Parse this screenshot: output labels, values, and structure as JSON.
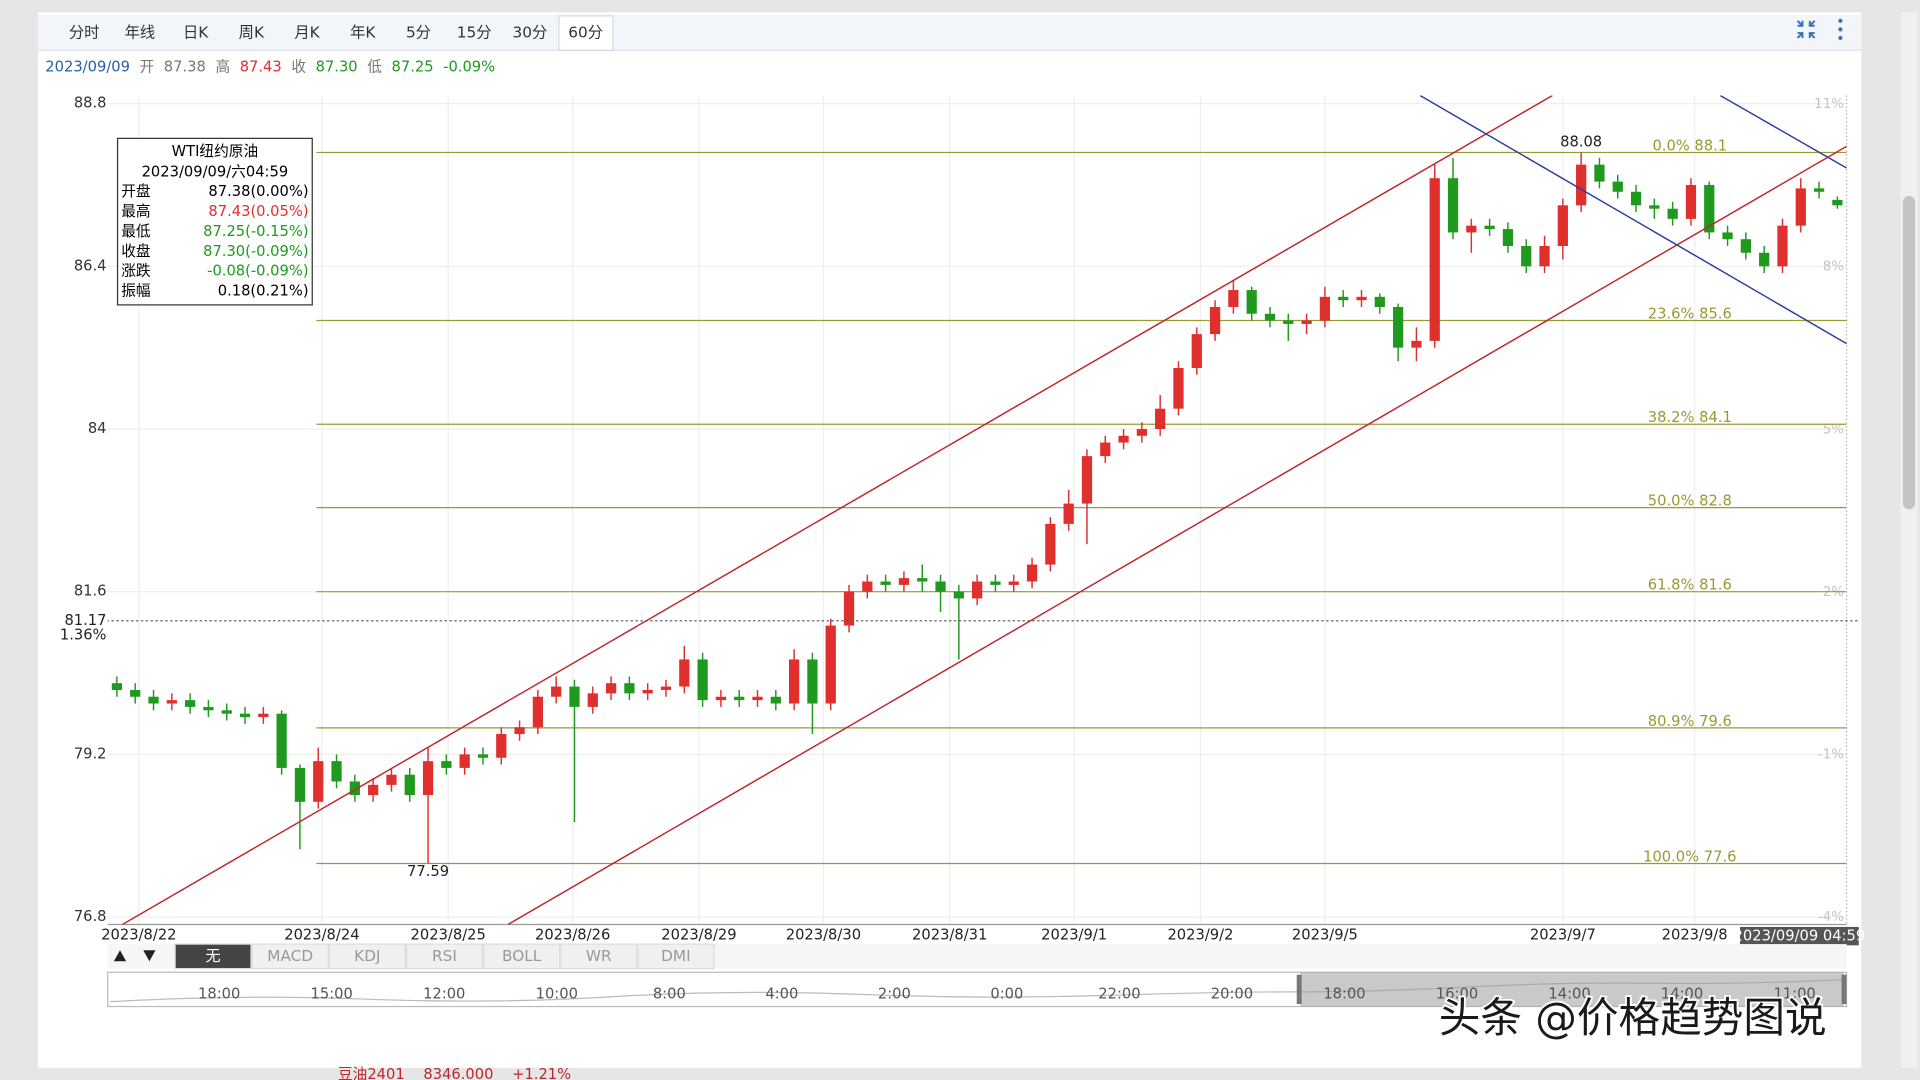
{
  "tabs": [
    "分时",
    "年线",
    "日K",
    "周K",
    "月K",
    "年K",
    "5分",
    "15分",
    "30分",
    "60分"
  ],
  "active_tab": 9,
  "info_bar": {
    "date": "2023/09/09",
    "open_label": "开",
    "open": "87.38",
    "high_label": "高",
    "high": "87.43",
    "close_label": "收",
    "close": "87.30",
    "low_label": "低",
    "low": "87.25",
    "change": "-0.09%"
  },
  "tooltip": {
    "title": "WTI纽约原油",
    "time": "2023/09/09/六04:59",
    "rows": [
      {
        "name": "开盘",
        "value": "87.38(0.00%)",
        "color": "#000000"
      },
      {
        "name": "最高",
        "value": "87.43(0.05%)",
        "color": "#e0302e"
      },
      {
        "name": "最低",
        "value": "87.25(-0.15%)",
        "color": "#1f9a1f"
      },
      {
        "name": "收盘",
        "value": "87.30(-0.09%)",
        "color": "#1f9a1f"
      },
      {
        "name": "涨跌",
        "value": "-0.08(-0.09%)",
        "color": "#1f9a1f"
      },
      {
        "name": "振幅",
        "value": "0.18(0.21%)",
        "color": "#000000"
      }
    ]
  },
  "chart_data": {
    "type": "candlestick",
    "open": [
      80.25,
      80.15,
      80.05,
      79.95,
      80.0,
      79.9,
      79.85,
      79.8,
      79.75,
      79.8,
      79.0,
      78.5,
      79.1,
      78.8,
      78.6,
      78.75,
      78.9,
      78.6,
      79.1,
      79.0,
      79.2,
      79.15,
      79.5,
      79.6,
      80.05,
      80.2,
      79.9,
      80.1,
      80.25,
      80.1,
      80.15,
      80.2,
      80.6,
      80.0,
      80.05,
      80.0,
      80.05,
      79.95,
      80.6,
      79.95,
      81.1,
      81.6,
      81.75,
      81.7,
      81.8,
      81.75,
      81.6,
      81.5,
      81.75,
      81.7,
      81.75,
      82.0,
      82.6,
      82.9,
      83.6,
      83.8,
      83.9,
      84.0,
      84.3,
      84.9,
      85.4,
      85.8,
      86.05,
      85.7,
      85.6,
      85.55,
      85.6,
      85.95,
      85.9,
      85.95,
      85.8,
      85.2,
      85.3,
      87.7,
      86.9,
      87.0,
      86.95,
      86.7,
      86.4,
      86.7,
      87.3,
      87.9,
      87.65,
      87.5,
      87.3,
      87.25,
      87.1,
      87.6,
      86.9,
      86.8,
      86.6,
      86.4,
      87.0,
      87.55,
      87.38
    ],
    "high": [
      80.35,
      80.25,
      80.15,
      80.1,
      80.1,
      80.0,
      79.95,
      79.9,
      79.9,
      79.85,
      79.05,
      79.3,
      79.2,
      78.9,
      78.85,
      79.0,
      79.0,
      79.3,
      79.2,
      79.3,
      79.3,
      79.6,
      79.7,
      80.15,
      80.35,
      80.3,
      80.2,
      80.35,
      80.35,
      80.25,
      80.3,
      80.8,
      80.7,
      80.15,
      80.15,
      80.15,
      80.15,
      80.75,
      80.7,
      81.2,
      81.7,
      81.85,
      81.85,
      81.9,
      82.0,
      81.85,
      81.7,
      81.85,
      81.85,
      81.85,
      82.1,
      82.7,
      83.1,
      83.7,
      83.9,
      84.0,
      84.1,
      84.5,
      85.0,
      85.5,
      85.9,
      86.2,
      86.1,
      85.8,
      85.7,
      85.7,
      86.1,
      86.05,
      86.05,
      86.0,
      85.85,
      85.5,
      87.9,
      88.0,
      87.1,
      87.1,
      87.05,
      86.8,
      86.85,
      87.4,
      88.08,
      88.0,
      87.75,
      87.6,
      87.4,
      87.35,
      87.7,
      87.65,
      87.0,
      86.9,
      86.7,
      87.1,
      87.7,
      87.65,
      87.43
    ],
    "low": [
      80.05,
      79.95,
      79.85,
      79.85,
      79.8,
      79.75,
      79.7,
      79.65,
      79.65,
      78.9,
      77.8,
      78.4,
      78.7,
      78.5,
      78.5,
      78.65,
      78.5,
      77.59,
      78.9,
      78.9,
      79.05,
      79.05,
      79.4,
      79.5,
      79.95,
      78.2,
      79.8,
      80.0,
      80.0,
      80.0,
      80.05,
      80.1,
      79.9,
      79.9,
      79.9,
      79.9,
      79.85,
      79.85,
      79.5,
      79.85,
      81.0,
      81.5,
      81.6,
      81.6,
      81.6,
      81.3,
      80.6,
      81.4,
      81.6,
      81.6,
      81.65,
      81.9,
      82.5,
      82.3,
      83.5,
      83.7,
      83.8,
      83.9,
      84.2,
      84.8,
      85.3,
      85.7,
      85.6,
      85.5,
      85.3,
      85.4,
      85.5,
      85.8,
      85.8,
      85.7,
      85.0,
      85.0,
      85.2,
      86.8,
      86.6,
      86.85,
      86.6,
      86.3,
      86.3,
      86.5,
      87.2,
      87.55,
      87.4,
      87.2,
      87.1,
      87.0,
      87.0,
      86.8,
      86.7,
      86.5,
      86.3,
      86.3,
      86.9,
      87.4,
      87.25
    ],
    "close": [
      80.15,
      80.05,
      79.95,
      80.0,
      79.9,
      79.85,
      79.8,
      79.75,
      79.8,
      79.0,
      78.5,
      79.1,
      78.8,
      78.6,
      78.75,
      78.9,
      78.6,
      79.1,
      79.0,
      79.2,
      79.15,
      79.5,
      79.6,
      80.05,
      80.2,
      79.9,
      80.1,
      80.25,
      80.1,
      80.15,
      80.2,
      80.6,
      80.0,
      80.05,
      80.0,
      80.05,
      79.95,
      80.6,
      79.95,
      81.1,
      81.6,
      81.75,
      81.7,
      81.8,
      81.75,
      81.6,
      81.5,
      81.75,
      81.7,
      81.75,
      82.0,
      82.6,
      82.9,
      83.6,
      83.8,
      83.9,
      84.0,
      84.3,
      84.9,
      85.4,
      85.8,
      86.05,
      85.7,
      85.6,
      85.55,
      85.6,
      85.95,
      85.9,
      85.95,
      85.8,
      85.2,
      85.3,
      87.7,
      86.9,
      87.0,
      86.95,
      86.7,
      86.4,
      86.7,
      87.3,
      87.9,
      87.65,
      87.5,
      87.3,
      87.25,
      87.1,
      87.6,
      86.9,
      86.8,
      86.6,
      86.4,
      87.0,
      87.55,
      87.5,
      87.3
    ],
    "up_color": "#e0302e",
    "down_color": "#1f9a1f",
    "ylim": [
      76.69,
      88.92
    ],
    "yticks": [
      88.8,
      86.4,
      84,
      81.6,
      79.2,
      76.8
    ],
    "y2lim": [
      -4.14,
      11.16
    ],
    "y2ticks": [
      {
        "value": 11,
        "label": "11%"
      },
      {
        "value": 8,
        "label": "8%"
      },
      {
        "value": 5,
        "label": "5%"
      },
      {
        "value": 2,
        "label": "2%"
      },
      {
        "value": -1,
        "label": "-1%"
      },
      {
        "value": -4,
        "label": "-4%"
      }
    ],
    "xlim": [
      0,
      95
    ],
    "xticks": [
      {
        "value": 1.7,
        "label": "2023/8/22"
      },
      {
        "value": 11.7,
        "label": "2023/8/24"
      },
      {
        "value": 18.6,
        "label": "2023/8/25"
      },
      {
        "value": 25.4,
        "label": "2023/8/26"
      },
      {
        "value": 32.3,
        "label": "2023/8/29"
      },
      {
        "value": 39.1,
        "label": "2023/8/30"
      },
      {
        "value": 46.0,
        "label": "2023/8/31"
      },
      {
        "value": 52.8,
        "label": "2023/9/1"
      },
      {
        "value": 59.7,
        "label": "2023/9/2"
      },
      {
        "value": 66.5,
        "label": "2023/9/5"
      },
      {
        "value": 79.5,
        "label": "2023/9/7"
      },
      {
        "value": 86.7,
        "label": "2023/9/8"
      }
    ],
    "grid": true,
    "cursor_label": "2023/09/09 04:59",
    "price_line": {
      "value": 81.17,
      "pct": {
        "value": 1.36,
        "label": "1.36%"
      }
    },
    "fibonacci": {
      "from_x": 11.4,
      "color": "#9a9a32",
      "levels": [
        {
          "value": 88.08,
          "label": "0.0% 88.1"
        },
        {
          "value": 85.6,
          "label": "23.6% 85.6"
        },
        {
          "value": 84.07,
          "label": "38.2% 84.1"
        },
        {
          "value": 82.84,
          "label": "50.0% 82.8"
        },
        {
          "value": 81.6,
          "label": "61.8% 81.6"
        },
        {
          "value": 79.59,
          "label": "80.9% 79.6"
        },
        {
          "value": 77.59,
          "label": "100.0% 77.6"
        }
      ]
    },
    "trendlines": [
      {
        "color": "#c0272d",
        "x": [
          0.8,
          78.93
        ],
        "y": [
          76.69,
          88.92
        ]
      },
      {
        "color": "#c0272d",
        "x": [
          21.87,
          95
        ],
        "y": [
          76.69,
          88.17
        ]
      },
      {
        "color": "#2c3e9e",
        "x": [
          71.7,
          95
        ],
        "y": [
          88.92,
          85.26
        ]
      },
      {
        "color": "#2c3e9e",
        "x": [
          88.1,
          95
        ],
        "y": [
          88.92,
          87.85
        ]
      }
    ],
    "annotations": [
      {
        "label": "88.08",
        "x": 80,
        "y": 88.08,
        "position": "above"
      },
      {
        "label": "77.59",
        "x": 17,
        "y": 77.59,
        "position": "below"
      }
    ]
  },
  "indicator_tabs": [
    "无",
    "MACD",
    "KDJ",
    "RSI",
    "BOLL",
    "WR",
    "DMI"
  ],
  "active_indicator": 0,
  "navigator_times": [
    "18:00",
    "15:00",
    "12:00",
    "10:00",
    "8:00",
    "4:00",
    "2:00",
    "0:00",
    "22:00",
    "20:00",
    "18:00",
    "16:00",
    "14:00",
    "14:00",
    "11:00"
  ],
  "watermark": "头条 @价格趋势图说",
  "footer_ticker": "豆油2401    8346.000    +1.21%"
}
